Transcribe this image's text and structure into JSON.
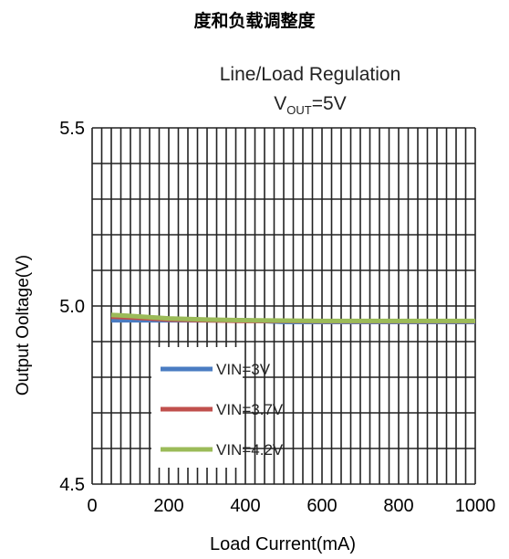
{
  "page_title": "度和负载调整度",
  "chart_data": {
    "type": "line",
    "title_line1": "Line/Load Regulation",
    "title_line2_main": "V",
    "title_line2_sub": "OUT",
    "title_line2_rest": "=5V",
    "xlabel": "Load Current(mA)",
    "ylabel": "Output Ooltage(V)",
    "xlim": [
      0,
      1000
    ],
    "ylim": [
      4.5,
      5.5
    ],
    "x_ticks": [
      "0",
      "200",
      "400",
      "600",
      "800",
      "1000"
    ],
    "y_ticks": [
      "4.5",
      "5.0",
      "5.5"
    ],
    "grid": true,
    "legend_position": "bottom-left",
    "series": [
      {
        "name": "VIN=3V",
        "color": "#4a7cc2",
        "x": [
          50,
          100,
          200,
          300,
          400,
          500,
          600,
          700,
          800,
          900,
          1000
        ],
        "y": [
          4.96,
          4.96,
          4.96,
          4.96,
          4.96,
          4.955,
          4.955,
          4.955,
          4.955,
          4.955,
          4.955
        ]
      },
      {
        "name": "VIN=3.7V",
        "color": "#c0504d",
        "x": [
          50,
          100,
          200,
          300,
          400,
          500,
          600,
          700,
          800,
          900,
          1000
        ],
        "y": [
          4.97,
          4.968,
          4.962,
          4.96,
          4.958,
          4.958,
          4.957,
          4.957,
          4.957,
          4.957,
          4.957
        ]
      },
      {
        "name": "VIN=4.2V",
        "color": "#9bbb59",
        "x": [
          50,
          100,
          200,
          300,
          400,
          500,
          600,
          700,
          800,
          900,
          1000
        ],
        "y": [
          4.975,
          4.972,
          4.965,
          4.962,
          4.96,
          4.959,
          4.958,
          4.958,
          4.958,
          4.958,
          4.958
        ]
      }
    ]
  }
}
